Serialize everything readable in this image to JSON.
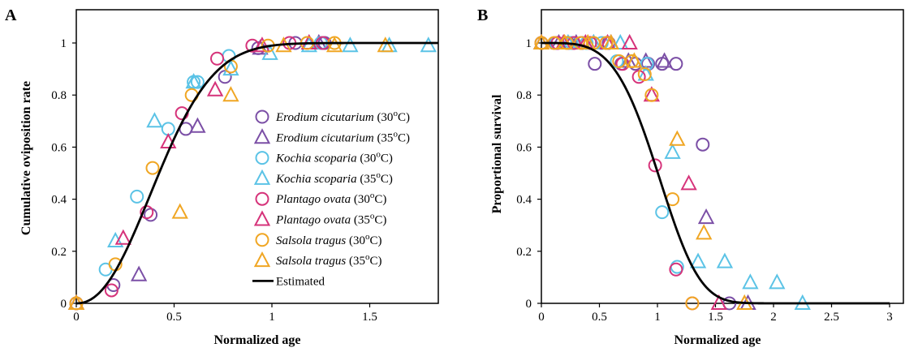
{
  "colors": {
    "erodium": "#7b4fa6",
    "kochia": "#5bc3e6",
    "plantago": "#d6337a",
    "salsola": "#f0a623",
    "estimated": "#000000"
  },
  "chart_data": [
    {
      "panel": "A",
      "type": "scatter",
      "xlabel": "Normalized age",
      "ylabel": "Cumulative oviposition rate",
      "xlim": [
        0,
        1.85
      ],
      "ylim": [
        0,
        1.1
      ],
      "xticks": [
        "0",
        "0.5",
        "1",
        "1.5"
      ],
      "yticks": [
        "0",
        "0.2",
        "0.4",
        "0.6",
        "0.8",
        "1"
      ],
      "legend": {
        "position": "right",
        "entries": [
          {
            "species": "Erodium cicutarium",
            "temp": " (30",
            "sup": "o",
            "unit": "C)",
            "marker": "circle",
            "color_key": "erodium"
          },
          {
            "species": "Erodium cicutarium",
            "temp": " (35",
            "sup": "o",
            "unit": "C)",
            "marker": "triangle",
            "color_key": "erodium"
          },
          {
            "species": "Kochia scoparia",
            "temp": " (30",
            "sup": "o",
            "unit": "C)",
            "marker": "circle",
            "color_key": "kochia"
          },
          {
            "species": "Kochia scoparia",
            "temp": " (35",
            "sup": "o",
            "unit": "C)",
            "marker": "triangle",
            "color_key": "kochia"
          },
          {
            "species": "Plantago ovata",
            "temp": " (30",
            "sup": "o",
            "unit": "C)",
            "marker": "circle",
            "color_key": "plantago"
          },
          {
            "species": "Plantago ovata",
            "temp": " (35",
            "sup": "o",
            "unit": "C)",
            "marker": "triangle",
            "color_key": "plantago"
          },
          {
            "species": "Salsola tragus",
            "temp": " (30",
            "sup": "o",
            "unit": "C)",
            "marker": "circle",
            "color_key": "salsola"
          },
          {
            "species": "Salsola tragus",
            "temp": " (35",
            "sup": "o",
            "unit": "C)",
            "marker": "triangle",
            "color_key": "salsola"
          },
          {
            "species": "",
            "temp": "Estimated",
            "sup": "",
            "unit": "",
            "marker": "line",
            "color_key": "estimated"
          }
        ]
      },
      "series": [
        {
          "marker": "circle",
          "color_key": "erodium",
          "points": [
            [
              0,
              0
            ],
            [
              0.19,
              0.07
            ],
            [
              0.38,
              0.34
            ],
            [
              0.56,
              0.67
            ],
            [
              0.76,
              0.87
            ],
            [
              0.93,
              0.98
            ],
            [
              1.12,
              1.0
            ],
            [
              1.27,
              1.0
            ]
          ]
        },
        {
          "marker": "triangle",
          "color_key": "erodium",
          "points": [
            [
              0,
              0
            ],
            [
              0.32,
              0.11
            ],
            [
              0.62,
              0.68
            ],
            [
              0.94,
              0.98
            ],
            [
              1.24,
              1.0
            ]
          ]
        },
        {
          "marker": "circle",
          "color_key": "kochia",
          "points": [
            [
              0,
              0
            ],
            [
              0.15,
              0.13
            ],
            [
              0.31,
              0.41
            ],
            [
              0.47,
              0.67
            ],
            [
              0.6,
              0.85
            ],
            [
              0.62,
              0.85
            ],
            [
              0.78,
              0.95
            ],
            [
              1.18,
              1.0
            ],
            [
              1.25,
              1.0
            ]
          ]
        },
        {
          "marker": "triangle",
          "color_key": "kochia",
          "points": [
            [
              0,
              0
            ],
            [
              0.2,
              0.24
            ],
            [
              0.4,
              0.7
            ],
            [
              0.6,
              0.85
            ],
            [
              0.79,
              0.9
            ],
            [
              0.99,
              0.96
            ],
            [
              1.19,
              0.99
            ],
            [
              1.4,
              0.99
            ],
            [
              1.6,
              0.99
            ],
            [
              1.8,
              0.99
            ]
          ]
        },
        {
          "marker": "circle",
          "color_key": "plantago",
          "points": [
            [
              0,
              0
            ],
            [
              0.18,
              0.05
            ],
            [
              0.36,
              0.35
            ],
            [
              0.54,
              0.73
            ],
            [
              0.72,
              0.94
            ],
            [
              0.9,
              0.99
            ],
            [
              1.09,
              1.0
            ],
            [
              1.26,
              1.0
            ]
          ]
        },
        {
          "marker": "triangle",
          "color_key": "plantago",
          "points": [
            [
              0,
              0
            ],
            [
              0.24,
              0.25
            ],
            [
              0.47,
              0.62
            ],
            [
              0.71,
              0.82
            ],
            [
              0.95,
              0.99
            ],
            [
              1.19,
              1.0
            ]
          ]
        },
        {
          "marker": "circle",
          "color_key": "salsola",
          "points": [
            [
              0,
              0
            ],
            [
              0.2,
              0.15
            ],
            [
              0.39,
              0.52
            ],
            [
              0.59,
              0.8
            ],
            [
              0.79,
              0.91
            ],
            [
              0.98,
              0.99
            ],
            [
              1.18,
              1.0
            ],
            [
              1.32,
              1.0
            ]
          ]
        },
        {
          "marker": "triangle",
          "color_key": "salsola",
          "points": [
            [
              0,
              0
            ],
            [
              0.53,
              0.35
            ],
            [
              0.79,
              0.8
            ],
            [
              1.06,
              0.99
            ],
            [
              1.32,
              0.99
            ],
            [
              1.58,
              0.99
            ]
          ]
        }
      ],
      "estimated": {
        "model": "cumulative Weibull",
        "scale": 0.5,
        "shape": 2.2
      }
    },
    {
      "panel": "B",
      "type": "scatter",
      "xlabel": "Normalized age",
      "ylabel": "Proportional survival",
      "xlim": [
        0,
        3.1
      ],
      "ylim": [
        0,
        1.1
      ],
      "xticks": [
        "0",
        "0.5",
        "1",
        "1.5",
        "2",
        "2.5",
        "3"
      ],
      "yticks": [
        "0",
        "0.2",
        "0.4",
        "0.6",
        "0.8",
        "1"
      ],
      "series": [
        {
          "marker": "circle",
          "color_key": "erodium",
          "points": [
            [
              0,
              1.0
            ],
            [
              0.12,
              1.0
            ],
            [
              0.23,
              1.0
            ],
            [
              0.35,
              1.0
            ],
            [
              0.46,
              0.92
            ],
            [
              0.58,
              1.0
            ],
            [
              0.69,
              0.92
            ],
            [
              0.81,
              0.92
            ],
            [
              0.92,
              0.92
            ],
            [
              1.04,
              0.92
            ],
            [
              1.16,
              0.92
            ],
            [
              1.39,
              0.61
            ],
            [
              1.62,
              0.0
            ]
          ]
        },
        {
          "marker": "triangle",
          "color_key": "erodium",
          "points": [
            [
              0,
              1.0
            ],
            [
              0.15,
              1.0
            ],
            [
              0.3,
              1.0
            ],
            [
              0.45,
              1.0
            ],
            [
              0.6,
              1.0
            ],
            [
              0.75,
              0.93
            ],
            [
              0.9,
              0.93
            ],
            [
              1.06,
              0.93
            ],
            [
              1.42,
              0.33
            ],
            [
              1.78,
              0.0
            ]
          ]
        },
        {
          "marker": "circle",
          "color_key": "kochia",
          "points": [
            [
              0,
              1.0
            ],
            [
              0.13,
              1.0
            ],
            [
              0.26,
              1.0
            ],
            [
              0.39,
              1.0
            ],
            [
              0.52,
              1.0
            ],
            [
              0.65,
              0.93
            ],
            [
              0.78,
              0.93
            ],
            [
              0.91,
              0.92
            ],
            [
              1.04,
              0.35
            ],
            [
              1.17,
              0.14
            ]
          ]
        },
        {
          "marker": "triangle",
          "color_key": "kochia",
          "points": [
            [
              0,
              1.0
            ],
            [
              0.23,
              1.0
            ],
            [
              0.45,
              1.0
            ],
            [
              0.68,
              1.0
            ],
            [
              0.9,
              0.88
            ],
            [
              1.13,
              0.58
            ],
            [
              1.35,
              0.16
            ],
            [
              1.58,
              0.16
            ],
            [
              1.8,
              0.08
            ],
            [
              2.03,
              0.08
            ],
            [
              2.25,
              0.0
            ]
          ]
        },
        {
          "marker": "circle",
          "color_key": "plantago",
          "points": [
            [
              0,
              1.0
            ],
            [
              0.14,
              1.0
            ],
            [
              0.28,
              1.0
            ],
            [
              0.42,
              1.0
            ],
            [
              0.56,
              1.0
            ],
            [
              0.7,
              0.92
            ],
            [
              0.84,
              0.87
            ],
            [
              0.98,
              0.53
            ],
            [
              1.16,
              0.13
            ],
            [
              1.3,
              0.0
            ]
          ]
        },
        {
          "marker": "triangle",
          "color_key": "plantago",
          "points": [
            [
              0,
              1.0
            ],
            [
              0.19,
              1.0
            ],
            [
              0.38,
              1.0
            ],
            [
              0.57,
              1.0
            ],
            [
              0.76,
              1.0
            ],
            [
              0.95,
              0.8
            ],
            [
              1.27,
              0.46
            ],
            [
              1.53,
              0.0
            ]
          ]
        },
        {
          "marker": "circle",
          "color_key": "salsola",
          "points": [
            [
              0,
              1.0
            ],
            [
              0.11,
              1.0
            ],
            [
              0.22,
              1.0
            ],
            [
              0.34,
              1.0
            ],
            [
              0.45,
              1.0
            ],
            [
              0.56,
              1.0
            ],
            [
              0.67,
              0.93
            ],
            [
              0.78,
              0.93
            ],
            [
              0.89,
              0.88
            ],
            [
              0.95,
              0.8
            ],
            [
              1.13,
              0.4
            ],
            [
              1.3,
              0.0
            ]
          ]
        },
        {
          "marker": "triangle",
          "color_key": "salsola",
          "points": [
            [
              0,
              1.0
            ],
            [
              0.2,
              1.0
            ],
            [
              0.4,
              1.0
            ],
            [
              0.6,
              1.0
            ],
            [
              0.8,
              0.93
            ],
            [
              1.17,
              0.63
            ],
            [
              1.4,
              0.27
            ],
            [
              1.75,
              0.0
            ]
          ]
        }
      ],
      "estimated": {
        "model": "Weibull survival",
        "scale": 1.1,
        "shape": 4.0
      }
    }
  ]
}
